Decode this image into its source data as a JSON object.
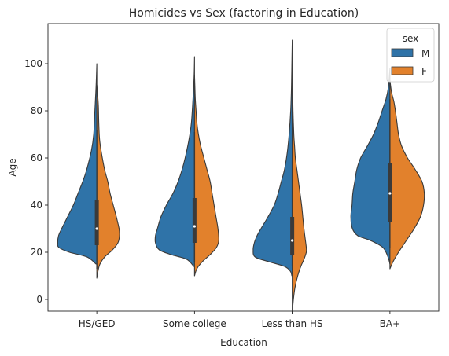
{
  "chart_data": {
    "type": "violin",
    "split": true,
    "title": "Homicides vs Sex (factoring in Education)",
    "xlabel": "Education",
    "ylabel": "Age",
    "ylim": [
      -5,
      117
    ],
    "yticks": [
      0,
      20,
      40,
      60,
      80,
      100
    ],
    "categories": [
      "HS/GED",
      "Some college",
      "Less than HS",
      "BA+"
    ],
    "legend": {
      "title": "sex",
      "location": "top-right",
      "entries": [
        {
          "label": "M",
          "color": "#2f73a8"
        },
        {
          "label": "F",
          "color": "#e2812c"
        }
      ]
    },
    "series": [
      {
        "name": "M",
        "color": "#2f73a8",
        "side": "left",
        "violins": [
          {
            "profile": [
              [
                100,
                0
              ],
              [
                90,
                0.02
              ],
              [
                80,
                0.05
              ],
              [
                70,
                0.08
              ],
              [
                63,
                0.14
              ],
              [
                55,
                0.26
              ],
              [
                50,
                0.36
              ],
              [
                45,
                0.48
              ],
              [
                40,
                0.6
              ],
              [
                35,
                0.75
              ],
              [
                30,
                0.9
              ],
              [
                27,
                0.98
              ],
              [
                24,
                1.0
              ],
              [
                22,
                0.97
              ],
              [
                20,
                0.7
              ],
              [
                18,
                0.25
              ],
              [
                15,
                0.02
              ]
            ],
            "q1": 23,
            "median": 30,
            "q3": 42,
            "whisker_low": 13,
            "whisker_high": 72
          },
          {
            "profile": [
              [
                103,
                0
              ],
              [
                95,
                0.01
              ],
              [
                85,
                0.04
              ],
              [
                75,
                0.08
              ],
              [
                68,
                0.14
              ],
              [
                60,
                0.24
              ],
              [
                55,
                0.32
              ],
              [
                50,
                0.42
              ],
              [
                45,
                0.55
              ],
              [
                40,
                0.72
              ],
              [
                35,
                0.86
              ],
              [
                30,
                0.95
              ],
              [
                27,
                1.0
              ],
              [
                24,
                1.0
              ],
              [
                21,
                0.9
              ],
              [
                19,
                0.6
              ],
              [
                17,
                0.2
              ],
              [
                14,
                0.02
              ]
            ],
            "q1": 24,
            "median": 31,
            "q3": 43,
            "whisker_low": 16,
            "whisker_high": 71
          },
          {
            "profile": [
              [
                110,
                0
              ],
              [
                100,
                0.01
              ],
              [
                90,
                0.02
              ],
              [
                80,
                0.04
              ],
              [
                70,
                0.08
              ],
              [
                62,
                0.13
              ],
              [
                55,
                0.2
              ],
              [
                50,
                0.28
              ],
              [
                45,
                0.36
              ],
              [
                40,
                0.46
              ],
              [
                35,
                0.62
              ],
              [
                30,
                0.8
              ],
              [
                27,
                0.9
              ],
              [
                24,
                0.97
              ],
              [
                21,
                1.0
              ],
              [
                18,
                0.95
              ],
              [
                16,
                0.6
              ],
              [
                14,
                0.2
              ],
              [
                12,
                0.05
              ],
              [
                10,
                0.01
              ]
            ],
            "q1": 19,
            "median": 25,
            "q3": 35,
            "whisker_low": 14,
            "whisker_high": 59
          },
          {
            "profile": [
              [
                98,
                0
              ],
              [
                90,
                0.04
              ],
              [
                85,
                0.1
              ],
              [
                80,
                0.2
              ],
              [
                75,
                0.3
              ],
              [
                70,
                0.42
              ],
              [
                65,
                0.58
              ],
              [
                60,
                0.75
              ],
              [
                55,
                0.85
              ],
              [
                50,
                0.9
              ],
              [
                45,
                0.95
              ],
              [
                40,
                0.97
              ],
              [
                35,
                1.0
              ],
              [
                30,
                0.96
              ],
              [
                27,
                0.82
              ],
              [
                25,
                0.5
              ],
              [
                22,
                0.18
              ],
              [
                18,
                0.05
              ],
              [
                15,
                0
              ]
            ],
            "q1": 33,
            "median": 45,
            "q3": 58,
            "whisker_low": 22,
            "whisker_high": 85
          }
        ]
      },
      {
        "name": "F",
        "color": "#e2812c",
        "side": "right",
        "violins": [
          {
            "profile": [
              [
                91,
                0
              ],
              [
                87,
                0.02
              ],
              [
                82,
                0.04
              ],
              [
                75,
                0.05
              ],
              [
                68,
                0.07
              ],
              [
                62,
                0.12
              ],
              [
                55,
                0.2
              ],
              [
                50,
                0.28
              ],
              [
                45,
                0.34
              ],
              [
                40,
                0.42
              ],
              [
                35,
                0.5
              ],
              [
                30,
                0.57
              ],
              [
                27,
                0.58
              ],
              [
                24,
                0.54
              ],
              [
                21,
                0.4
              ],
              [
                18,
                0.2
              ],
              [
                15,
                0.08
              ],
              [
                12,
                0.03
              ],
              [
                9,
                0
              ]
            ],
            "q1": 23,
            "median": 30,
            "q3": 42,
            "whisker_low": 12,
            "whisker_high": 74
          },
          {
            "profile": [
              [
                95,
                0
              ],
              [
                90,
                0.01
              ],
              [
                85,
                0.02
              ],
              [
                80,
                0.04
              ],
              [
                75,
                0.06
              ],
              [
                70,
                0.1
              ],
              [
                65,
                0.16
              ],
              [
                60,
                0.24
              ],
              [
                55,
                0.32
              ],
              [
                50,
                0.4
              ],
              [
                45,
                0.45
              ],
              [
                40,
                0.5
              ],
              [
                35,
                0.55
              ],
              [
                30,
                0.6
              ],
              [
                25,
                0.62
              ],
              [
                22,
                0.56
              ],
              [
                19,
                0.4
              ],
              [
                16,
                0.2
              ],
              [
                13,
                0.06
              ],
              [
                10,
                0
              ]
            ],
            "q1": 24,
            "median": 31,
            "q3": 43,
            "whisker_low": 14,
            "whisker_high": 72
          },
          {
            "profile": [
              [
                97,
                0
              ],
              [
                90,
                0.01
              ],
              [
                80,
                0.02
              ],
              [
                70,
                0.04
              ],
              [
                65,
                0.06
              ],
              [
                60,
                0.08
              ],
              [
                55,
                0.12
              ],
              [
                50,
                0.16
              ],
              [
                45,
                0.2
              ],
              [
                40,
                0.24
              ],
              [
                35,
                0.27
              ],
              [
                30,
                0.3
              ],
              [
                26,
                0.33
              ],
              [
                22,
                0.36
              ],
              [
                20,
                0.36
              ],
              [
                17,
                0.3
              ],
              [
                14,
                0.22
              ],
              [
                10,
                0.14
              ],
              [
                5,
                0.07
              ],
              [
                0,
                0.03
              ],
              [
                -6,
                0
              ]
            ],
            "q1": 19,
            "median": 25,
            "q3": 35,
            "whisker_low": 6,
            "whisker_high": 60
          },
          {
            "profile": [
              [
                93,
                0
              ],
              [
                88,
                0.04
              ],
              [
                84,
                0.1
              ],
              [
                80,
                0.14
              ],
              [
                75,
                0.18
              ],
              [
                70,
                0.22
              ],
              [
                65,
                0.3
              ],
              [
                60,
                0.45
              ],
              [
                55,
                0.65
              ],
              [
                50,
                0.82
              ],
              [
                45,
                0.88
              ],
              [
                40,
                0.86
              ],
              [
                35,
                0.78
              ],
              [
                30,
                0.62
              ],
              [
                25,
                0.42
              ],
              [
                20,
                0.22
              ],
              [
                16,
                0.08
              ],
              [
                13,
                0
              ]
            ],
            "q1": 33,
            "median": 45,
            "q3": 58,
            "whisker_low": 18,
            "whisker_high": 82
          }
        ]
      }
    ]
  }
}
